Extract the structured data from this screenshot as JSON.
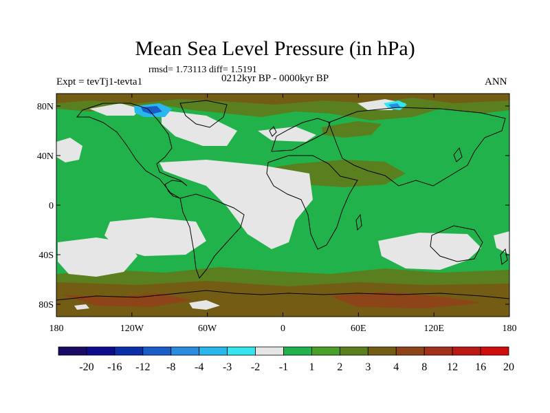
{
  "title": "Mean Sea Level Pressure (in hPa)",
  "stats": "rmsd= 1.73113 diff= 1.5191",
  "period": "0212kyr BP - 0000kyr BP",
  "experiment": "Expt = tevTj1-tevta1",
  "season": "ANN",
  "axes": {
    "y_ticks": [
      {
        "label": "80N",
        "lat": 80
      },
      {
        "label": "40N",
        "lat": 40
      },
      {
        "label": "0",
        "lat": 0
      },
      {
        "label": "40S",
        "lat": -40
      },
      {
        "label": "80S",
        "lat": -80
      }
    ],
    "x_ticks": [
      {
        "label": "180",
        "lon": -180
      },
      {
        "label": "120W",
        "lon": -120
      },
      {
        "label": "60W",
        "lon": -60
      },
      {
        "label": "0",
        "lon": 0
      },
      {
        "label": "60E",
        "lon": 60
      },
      {
        "label": "120E",
        "lon": 120
      },
      {
        "label": "180",
        "lon": 180
      }
    ],
    "lon_range": [
      -180,
      180
    ],
    "lat_range": [
      -90,
      90
    ]
  },
  "colorbar": {
    "colors": [
      "#1a0a66",
      "#0d0d8c",
      "#0a2fa8",
      "#1a5cc8",
      "#2a8ce0",
      "#2ab8ec",
      "#33e6f0",
      "#e6e6e6",
      "#22b24c",
      "#4a9e2a",
      "#5a7f1f",
      "#735c14",
      "#8c4418",
      "#a3301a",
      "#bb1a14",
      "#d10c0c"
    ],
    "labels": [
      "-20",
      "-16",
      "-12",
      "-8",
      "-4",
      "-3",
      "-2",
      "-1",
      "1",
      "2",
      "3",
      "4",
      "8",
      "12",
      "16",
      "20"
    ]
  }
}
